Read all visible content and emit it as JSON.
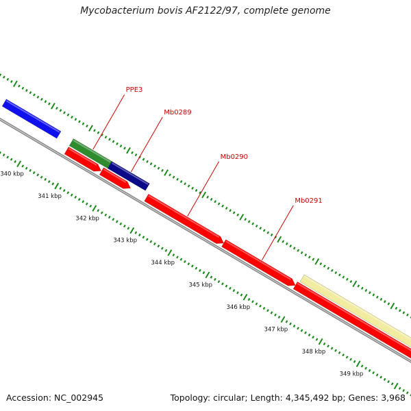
{
  "title": "Mycobacterium bovis AF2122/97, complete genome",
  "footer": {
    "accession": "Accession: NC_002945",
    "summary": "Topology: circular; Length: 4,345,492 bp; Genes: 3,968"
  },
  "colors": {
    "background": "#ffffff",
    "backbone": "#8a8a8a",
    "tick": "#1a8a1a",
    "label": "#cc0000",
    "forward_gene": "#ff0000",
    "ppe_gene": "#2e8b2e",
    "blue_gene": "#1010ee",
    "navy_gene": "#0a0a88",
    "pale_gene": "#f2eca0"
  },
  "scale": {
    "unit": "kbp",
    "ticks": [
      {
        "kbp": 340,
        "label": "340 kbp"
      },
      {
        "kbp": 341,
        "label": "341 kbp"
      },
      {
        "kbp": 342,
        "label": "342 kbp"
      },
      {
        "kbp": 343,
        "label": "343 kbp"
      },
      {
        "kbp": 344,
        "label": "344 kbp"
      },
      {
        "kbp": 345,
        "label": "345 kbp"
      },
      {
        "kbp": 346,
        "label": "346 kbp"
      },
      {
        "kbp": 347,
        "label": "347 kbp"
      },
      {
        "kbp": 348,
        "label": "348 kbp"
      },
      {
        "kbp": 349,
        "label": "349 kbp"
      }
    ]
  },
  "genes": [
    {
      "id": "g-blue",
      "label": "",
      "start_kbp": 339.0,
      "end_kbp": 340.45,
      "track": "outer",
      "color": "#1010ee",
      "arrow": false
    },
    {
      "id": "g-ppe3",
      "label": "PPE3",
      "start_kbp": 340.78,
      "end_kbp": 341.8,
      "track": "outer",
      "color": "#2e8b2e",
      "arrow": false
    },
    {
      "id": "g-mb0289",
      "label": "Mb0289",
      "start_kbp": 341.8,
      "end_kbp": 342.8,
      "track": "outer",
      "color": "#0a0a88",
      "arrow": false
    },
    {
      "id": "g-fwd-1",
      "label": "",
      "start_kbp": 340.78,
      "end_kbp": 341.7,
      "track": "inner",
      "color": "#ff0000",
      "arrow": true
    },
    {
      "id": "g-fwd-2",
      "label": "",
      "start_kbp": 341.71,
      "end_kbp": 342.48,
      "track": "inner",
      "color": "#ff0000",
      "arrow": true
    },
    {
      "id": "g-mb0290",
      "label": "Mb0290",
      "start_kbp": 342.9,
      "end_kbp": 344.95,
      "track": "inner",
      "color": "#ff0000",
      "arrow": true
    },
    {
      "id": "g-mb0291",
      "label": "Mb0291",
      "start_kbp": 344.95,
      "end_kbp": 346.85,
      "track": "inner",
      "color": "#ff0000",
      "arrow": true
    },
    {
      "id": "g-fwd-5",
      "label": "",
      "start_kbp": 346.85,
      "end_kbp": 350.0,
      "track": "inner",
      "color": "#ff0000",
      "arrow": false
    },
    {
      "id": "g-pale",
      "label": "",
      "start_kbp": 346.9,
      "end_kbp": 350.0,
      "track": "outer",
      "color": "#f2eca0",
      "arrow": false
    }
  ]
}
